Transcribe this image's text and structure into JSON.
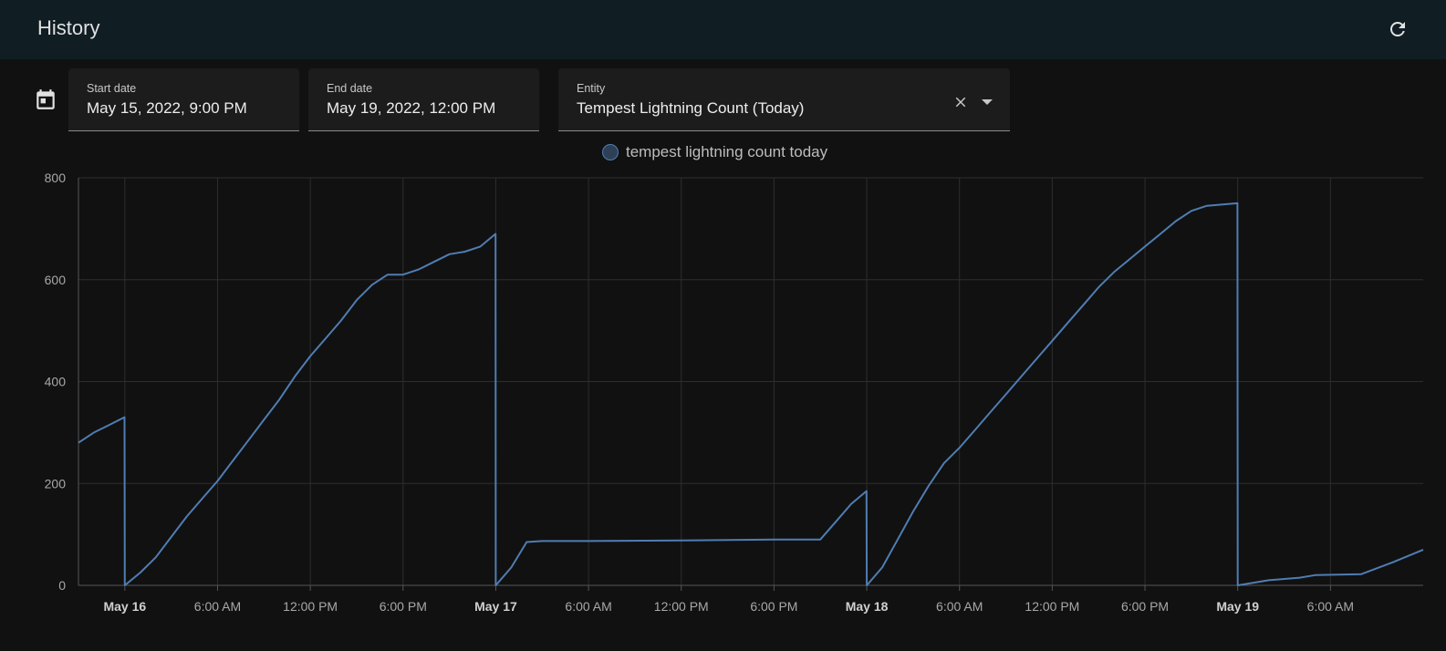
{
  "header": {
    "title": "History",
    "refresh_icon": "refresh-icon"
  },
  "filters": {
    "calendar_icon": "calendar-icon",
    "start_date": {
      "label": "Start date",
      "value": "May 15, 2022, 9:00 PM"
    },
    "end_date": {
      "label": "End date",
      "value": "May 19, 2022, 12:00 PM"
    },
    "entity": {
      "label": "Entity",
      "value": "Tempest Lightning Count (Today)",
      "clear_icon": "close-icon",
      "dropdown_icon": "caret-down-icon"
    }
  },
  "colors": {
    "line": "#4f7db3",
    "grid": "#2e2e2e",
    "background": "#111111",
    "header": "#101e24"
  },
  "chart_data": {
    "type": "line",
    "grid": true,
    "legend_placement": "top",
    "series": [
      {
        "name": "tempest lightning count today",
        "points": [
          [
            "2022-05-15T21:00",
            280
          ],
          [
            "2022-05-15T22:00",
            300
          ],
          [
            "2022-05-15T23:00",
            315
          ],
          [
            "2022-05-15T23:59",
            330
          ],
          [
            "2022-05-16T00:00",
            0
          ],
          [
            "2022-05-16T01:00",
            25
          ],
          [
            "2022-05-16T02:00",
            55
          ],
          [
            "2022-05-16T03:00",
            95
          ],
          [
            "2022-05-16T04:00",
            135
          ],
          [
            "2022-05-16T05:00",
            170
          ],
          [
            "2022-05-16T06:00",
            205
          ],
          [
            "2022-05-16T07:00",
            245
          ],
          [
            "2022-05-16T08:00",
            285
          ],
          [
            "2022-05-16T09:00",
            325
          ],
          [
            "2022-05-16T10:00",
            365
          ],
          [
            "2022-05-16T11:00",
            410
          ],
          [
            "2022-05-16T12:00",
            450
          ],
          [
            "2022-05-16T13:00",
            485
          ],
          [
            "2022-05-16T14:00",
            520
          ],
          [
            "2022-05-16T15:00",
            560
          ],
          [
            "2022-05-16T16:00",
            590
          ],
          [
            "2022-05-16T17:00",
            610
          ],
          [
            "2022-05-16T18:00",
            610
          ],
          [
            "2022-05-16T19:00",
            620
          ],
          [
            "2022-05-16T20:00",
            635
          ],
          [
            "2022-05-16T21:00",
            650
          ],
          [
            "2022-05-16T22:00",
            655
          ],
          [
            "2022-05-16T23:00",
            665
          ],
          [
            "2022-05-16T23:59",
            690
          ],
          [
            "2022-05-17T00:00",
            0
          ],
          [
            "2022-05-17T01:00",
            35
          ],
          [
            "2022-05-17T02:00",
            85
          ],
          [
            "2022-05-17T03:00",
            87
          ],
          [
            "2022-05-17T06:00",
            87
          ],
          [
            "2022-05-17T12:00",
            88
          ],
          [
            "2022-05-17T18:00",
            90
          ],
          [
            "2022-05-17T21:00",
            90
          ],
          [
            "2022-05-17T22:00",
            125
          ],
          [
            "2022-05-17T23:00",
            160
          ],
          [
            "2022-05-17T23:59",
            185
          ],
          [
            "2022-05-18T00:00",
            0
          ],
          [
            "2022-05-18T01:00",
            35
          ],
          [
            "2022-05-18T02:00",
            90
          ],
          [
            "2022-05-18T03:00",
            145
          ],
          [
            "2022-05-18T04:00",
            195
          ],
          [
            "2022-05-18T05:00",
            240
          ],
          [
            "2022-05-18T06:00",
            270
          ],
          [
            "2022-05-18T07:00",
            305
          ],
          [
            "2022-05-18T08:00",
            340
          ],
          [
            "2022-05-18T09:00",
            375
          ],
          [
            "2022-05-18T10:00",
            410
          ],
          [
            "2022-05-18T11:00",
            445
          ],
          [
            "2022-05-18T12:00",
            480
          ],
          [
            "2022-05-18T13:00",
            515
          ],
          [
            "2022-05-18T14:00",
            550
          ],
          [
            "2022-05-18T15:00",
            585
          ],
          [
            "2022-05-18T16:00",
            615
          ],
          [
            "2022-05-18T17:00",
            640
          ],
          [
            "2022-05-18T18:00",
            665
          ],
          [
            "2022-05-18T19:00",
            690
          ],
          [
            "2022-05-18T20:00",
            715
          ],
          [
            "2022-05-18T21:00",
            735
          ],
          [
            "2022-05-18T22:00",
            745
          ],
          [
            "2022-05-18T23:59",
            750
          ],
          [
            "2022-05-19T00:00",
            0
          ],
          [
            "2022-05-19T02:00",
            10
          ],
          [
            "2022-05-19T04:00",
            15
          ],
          [
            "2022-05-19T05:00",
            20
          ],
          [
            "2022-05-19T08:00",
            22
          ],
          [
            "2022-05-19T10:00",
            45
          ],
          [
            "2022-05-19T12:00",
            70
          ]
        ]
      }
    ],
    "xlim": [
      "2022-05-15T21:00",
      "2022-05-19T12:00"
    ],
    "ylim": [
      0,
      800
    ],
    "y_ticks": [
      0,
      200,
      400,
      600,
      800
    ],
    "x_ticks": [
      {
        "at": "2022-05-16T00:00",
        "label": "May 16",
        "bold": true
      },
      {
        "at": "2022-05-16T06:00",
        "label": "6:00 AM",
        "bold": false
      },
      {
        "at": "2022-05-16T12:00",
        "label": "12:00 PM",
        "bold": false
      },
      {
        "at": "2022-05-16T18:00",
        "label": "6:00 PM",
        "bold": false
      },
      {
        "at": "2022-05-17T00:00",
        "label": "May 17",
        "bold": true
      },
      {
        "at": "2022-05-17T06:00",
        "label": "6:00 AM",
        "bold": false
      },
      {
        "at": "2022-05-17T12:00",
        "label": "12:00 PM",
        "bold": false
      },
      {
        "at": "2022-05-17T18:00",
        "label": "6:00 PM",
        "bold": false
      },
      {
        "at": "2022-05-18T00:00",
        "label": "May 18",
        "bold": true
      },
      {
        "at": "2022-05-18T06:00",
        "label": "6:00 AM",
        "bold": false
      },
      {
        "at": "2022-05-18T12:00",
        "label": "12:00 PM",
        "bold": false
      },
      {
        "at": "2022-05-18T18:00",
        "label": "6:00 PM",
        "bold": false
      },
      {
        "at": "2022-05-19T00:00",
        "label": "May 19",
        "bold": true
      },
      {
        "at": "2022-05-19T06:00",
        "label": "6:00 AM",
        "bold": false
      }
    ]
  }
}
